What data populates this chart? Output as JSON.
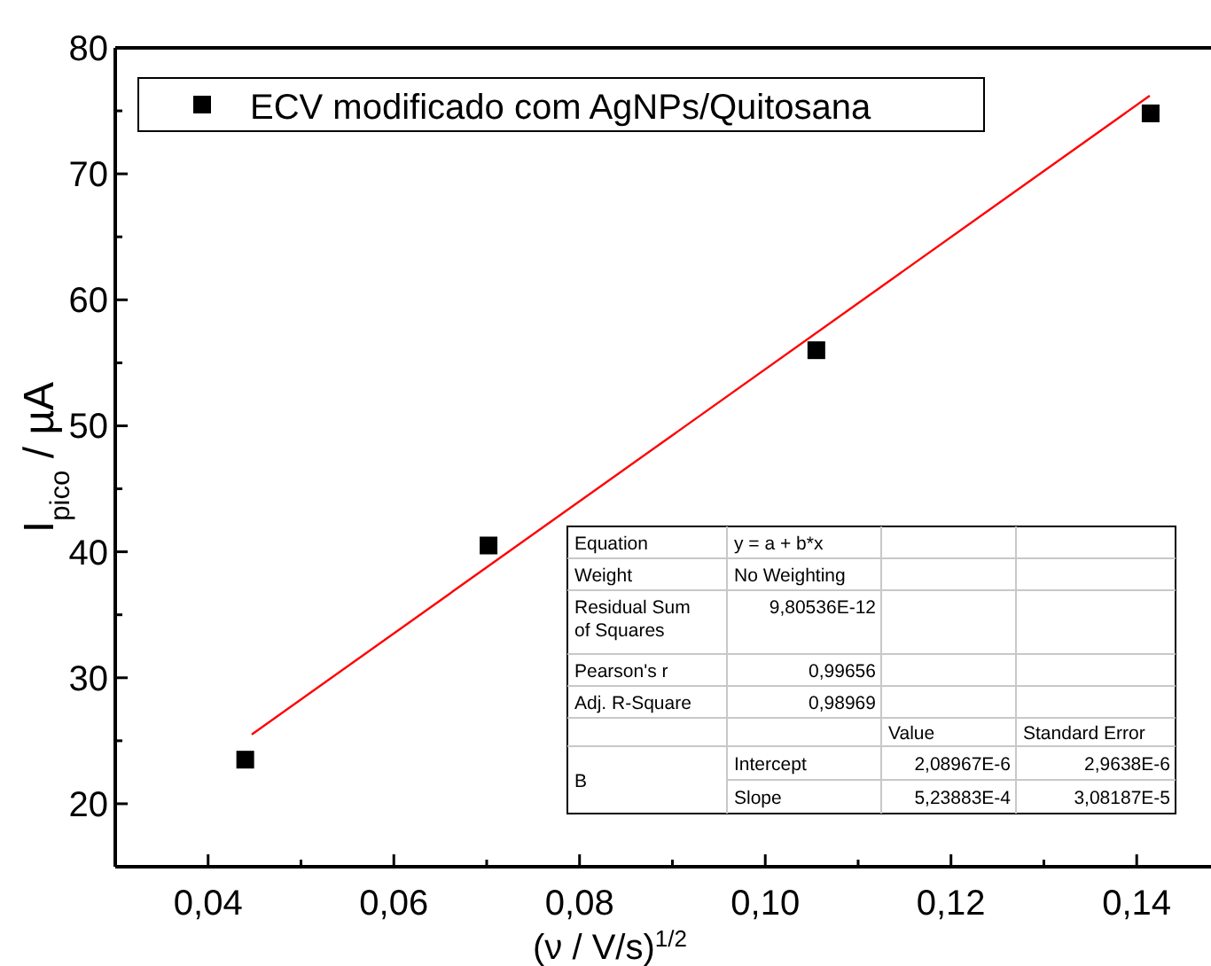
{
  "chart_data": {
    "type": "scatter",
    "xlabel": "(ν / V/s)$^{1/2}$",
    "ylabel": "I$_{pico}$ / µA",
    "xlim": [
      0.03,
      0.148
    ],
    "ylim": [
      15,
      80
    ],
    "xticks": [
      {
        "value": 0.04,
        "label": "0,04"
      },
      {
        "value": 0.05,
        "label": null
      },
      {
        "value": 0.06,
        "label": "0,06"
      },
      {
        "value": 0.07,
        "label": null
      },
      {
        "value": 0.08,
        "label": "0,08"
      },
      {
        "value": 0.09,
        "label": null
      },
      {
        "value": 0.1,
        "label": "0,10"
      },
      {
        "value": 0.11,
        "label": null
      },
      {
        "value": 0.12,
        "label": "0,12"
      },
      {
        "value": 0.13,
        "label": null
      },
      {
        "value": 0.14,
        "label": "0,14"
      }
    ],
    "yticks": [
      {
        "value": 15,
        "label": null
      },
      20,
      {
        "value": 25,
        "label": null
      },
      30,
      {
        "value": 35,
        "label": null
      },
      40,
      {
        "value": 45,
        "label": null
      },
      50,
      {
        "value": 55,
        "label": null
      },
      60,
      {
        "value": 65,
        "label": null
      },
      70,
      {
        "value": 75,
        "label": null
      },
      80
    ],
    "legend": "top left",
    "grid": false,
    "series": [
      {
        "name": "ECV modificado com AgNPs/Quitosana",
        "marker": "square",
        "color": "#000000",
        "x": [
          0.044,
          0.0702,
          0.1055,
          0.1415
        ],
        "values": [
          23.5,
          40.5,
          56.0,
          74.8
        ]
      },
      {
        "type": "line",
        "color": "#ff0000",
        "x": [
          0.0447,
          0.1414
        ],
        "values": [
          25.5,
          76.2
        ]
      }
    ],
    "annotations": [
      "Equation",
      "y = a + b*x",
      "Weight",
      "No Weighting",
      "Residual Sum of Squares",
      "9,80536E-12",
      "Pearson's r",
      "0,99656",
      "Adj. R-Square",
      "0,98969",
      "Value",
      "Standard Error",
      "B",
      "Intercept",
      "2,08967E-6",
      "2,9638E-6",
      "Slope",
      "5,23883E-4",
      "3,08187E-5"
    ]
  }
}
